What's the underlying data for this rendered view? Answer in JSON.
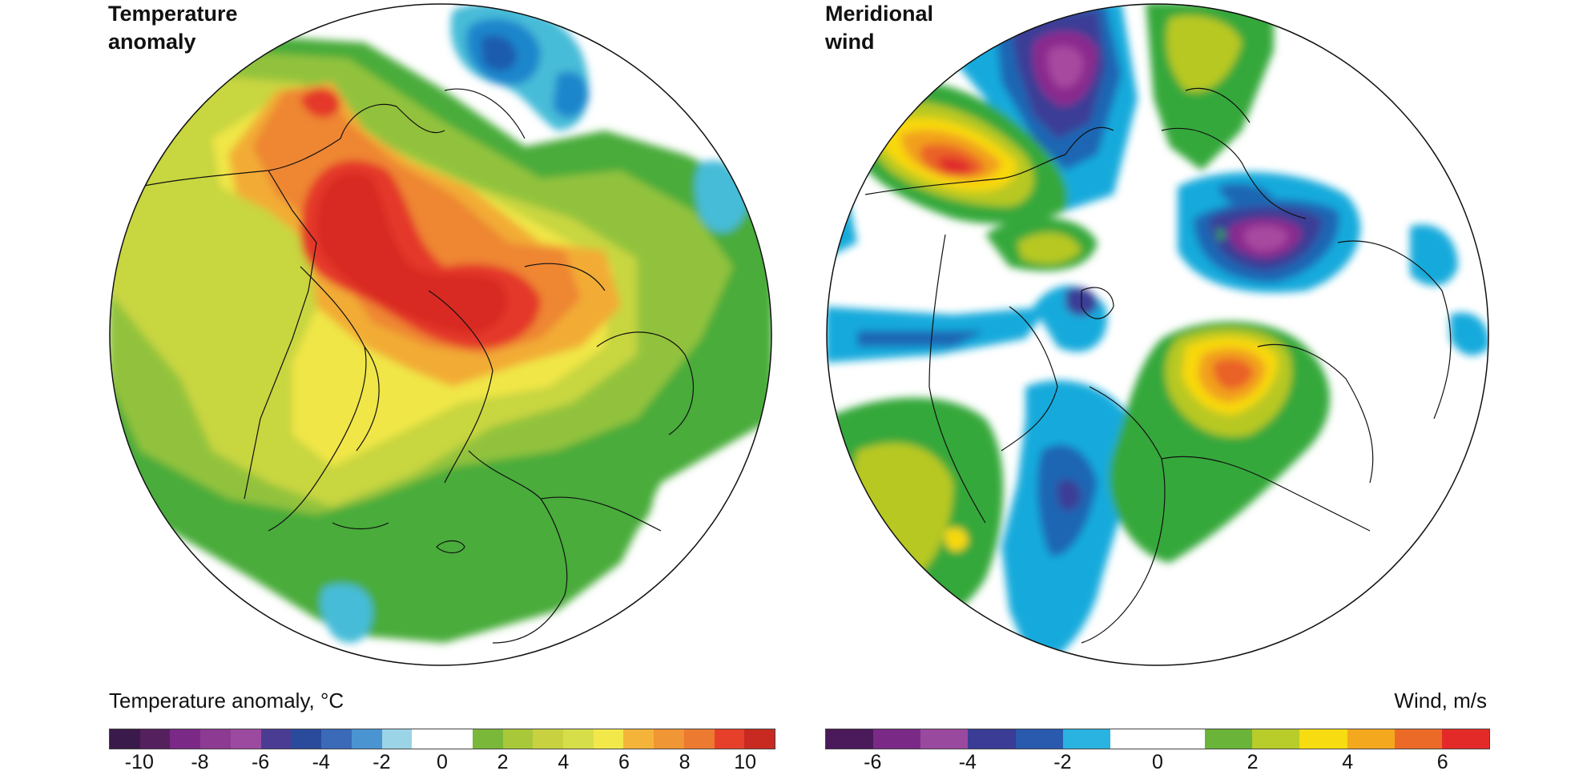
{
  "panels": [
    {
      "title": "Temperature\nanomaly",
      "colorbar_label": "Temperature anomaly, °C",
      "colorbar": {
        "min": -11,
        "max": 11,
        "colors": [
          "#3a1a4a",
          "#55205e",
          "#7a2a86",
          "#8d3a93",
          "#9c4aa0",
          "#4a3c93",
          "#2a4a9c",
          "#3a6ab8",
          "#4a94d2",
          "#9ad4e6",
          "#ffffff",
          "#ffffff",
          "#7ab83a",
          "#a8c83a",
          "#c8d240",
          "#d6de4a",
          "#f2e84a",
          "#f4b43a",
          "#f09634",
          "#ec7a30",
          "#e6402a",
          "#c82a22"
        ],
        "ticks": [
          -10,
          -8,
          -6,
          -4,
          -2,
          0,
          2,
          4,
          6,
          8,
          10
        ]
      }
    },
    {
      "title": "Meridional\nwind",
      "colorbar_label": "Wind, m/s",
      "colorbar": {
        "min": -7,
        "max": 7,
        "colors": [
          "#4a1a5a",
          "#7a2a86",
          "#9a4a9e",
          "#3a3c96",
          "#2a5aae",
          "#2ab2e0",
          "#ffffff",
          "#ffffff",
          "#6ab43a",
          "#b8cc2a",
          "#f6dc10",
          "#f4a81e",
          "#ec6a28",
          "#e42a28"
        ],
        "ticks": [
          -6,
          -4,
          -2,
          0,
          2,
          4,
          6
        ]
      }
    }
  ],
  "colors": {
    "t_green": "#4aac3a",
    "t_lgreen": "#92c23c",
    "t_yg": "#c8d640",
    "t_yellow": "#f0e646",
    "t_orange": "#f2ac36",
    "t_dorange": "#ee8632",
    "t_red": "#e4382a",
    "t_dred": "#d82a24",
    "t_cyan": "#46bcd8",
    "t_blue": "#1a86cc",
    "t_navy": "#1a5cae",
    "w_cyan": "#12aadc",
    "w_blue": "#1a66b4",
    "w_navy": "#3a3c96",
    "w_purple": "#8a2a8e",
    "w_magenta": "#a84aa0",
    "w_green": "#34a83a",
    "w_lime": "#b8c820",
    "w_yellow": "#f8d80e",
    "w_orange": "#f2a01c",
    "w_dorange": "#ea6226",
    "w_red": "#e02a2a"
  }
}
